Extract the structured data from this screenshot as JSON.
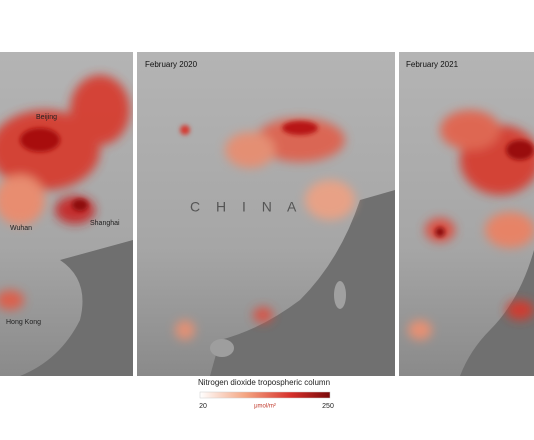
{
  "panels": [
    {
      "title": null
    },
    {
      "title": "February 2020"
    },
    {
      "title": "February 2021"
    }
  ],
  "places": {
    "beijing": "Beijing",
    "wuhan": "Wuhan",
    "shanghai": "Shanghai",
    "hong_kong": "Hong Kong",
    "china": "C H I N A"
  },
  "colorbar": {
    "title": "Nitrogen dioxide tropospheric column",
    "min": 20,
    "max": 250,
    "unit": "μmol/m²"
  }
}
